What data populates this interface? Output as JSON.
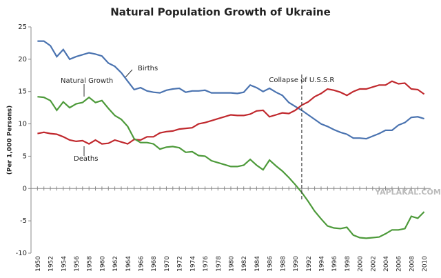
{
  "chart_data": {
    "type": "line",
    "title": "Natural Population Growth of Ukraine",
    "y_label": "(Per 1,000 Persons)",
    "x": [
      1950,
      1951,
      1952,
      1953,
      1954,
      1955,
      1956,
      1957,
      1958,
      1959,
      1960,
      1961,
      1962,
      1963,
      1964,
      1965,
      1966,
      1967,
      1968,
      1969,
      1970,
      1971,
      1972,
      1973,
      1974,
      1975,
      1976,
      1977,
      1978,
      1979,
      1980,
      1981,
      1982,
      1983,
      1984,
      1985,
      1986,
      1987,
      1988,
      1989,
      1990,
      1991,
      1992,
      1993,
      1994,
      1995,
      1996,
      1997,
      1998,
      1999,
      2000,
      2001,
      2002,
      2003,
      2004,
      2005,
      2006,
      2007,
      2008,
      2009,
      2010
    ],
    "series": [
      {
        "name": "Births",
        "color": "#4a73b0",
        "values": [
          22.8,
          22.8,
          22.1,
          20.4,
          21.5,
          20.0,
          20.4,
          20.7,
          21.0,
          20.8,
          20.5,
          19.4,
          18.9,
          17.9,
          16.6,
          15.3,
          15.6,
          15.1,
          14.9,
          14.8,
          15.2,
          15.4,
          15.5,
          14.9,
          15.1,
          15.1,
          15.2,
          14.8,
          14.8,
          14.8,
          14.8,
          14.7,
          14.9,
          16.0,
          15.6,
          15.0,
          15.5,
          14.9,
          14.4,
          13.3,
          12.7,
          12.1,
          11.4,
          10.7,
          10.0,
          9.6,
          9.1,
          8.7,
          8.4,
          7.8,
          7.8,
          7.7,
          8.1,
          8.5,
          9.0,
          9.0,
          9.8,
          10.2,
          11.0,
          11.1,
          10.8
        ]
      },
      {
        "name": "Deaths",
        "color": "#c0282d",
        "values": [
          8.5,
          8.7,
          8.5,
          8.4,
          8.0,
          7.5,
          7.3,
          7.4,
          6.9,
          7.5,
          6.9,
          7.0,
          7.5,
          7.2,
          6.9,
          7.6,
          7.5,
          8.0,
          8.0,
          8.6,
          8.8,
          8.9,
          9.2,
          9.3,
          9.4,
          10.0,
          10.2,
          10.5,
          10.8,
          11.1,
          11.4,
          11.3,
          11.3,
          11.5,
          12.0,
          12.1,
          11.1,
          11.4,
          11.7,
          11.6,
          12.1,
          12.9,
          13.4,
          14.2,
          14.7,
          15.4,
          15.2,
          14.9,
          14.4,
          15.0,
          15.4,
          15.4,
          15.7,
          16.0,
          16.0,
          16.6,
          16.2,
          16.3,
          15.4,
          15.3,
          14.6
        ]
      },
      {
        "name": "Natural Growth",
        "color": "#4d9a3a",
        "values": [
          14.2,
          14.1,
          13.6,
          12.1,
          13.4,
          12.5,
          13.1,
          13.3,
          14.1,
          13.3,
          13.6,
          12.4,
          11.3,
          10.7,
          9.6,
          7.7,
          7.1,
          7.1,
          6.9,
          6.1,
          6.4,
          6.5,
          6.3,
          5.6,
          5.7,
          5.1,
          5.0,
          4.3,
          4.0,
          3.7,
          3.4,
          3.4,
          3.6,
          4.5,
          3.6,
          2.9,
          4.4,
          3.5,
          2.7,
          1.7,
          0.6,
          -0.6,
          -2.0,
          -3.5,
          -4.7,
          -5.8,
          -6.1,
          -6.2,
          -6.0,
          -7.2,
          -7.6,
          -7.7,
          -7.6,
          -7.5,
          -7.0,
          -6.4,
          -6.4,
          -6.2,
          -4.3,
          -4.6,
          -3.6
        ]
      }
    ],
    "vline": {
      "x": 1991,
      "label": "Collapse of U.S.S.R"
    },
    "watermark": "YAPLAKAL.COM",
    "xlim": [
      1949,
      2011
    ],
    "xticks": [
      1950,
      1952,
      1954,
      1956,
      1958,
      1960,
      1962,
      1964,
      1966,
      1968,
      1970,
      1972,
      1974,
      1976,
      1978,
      1980,
      1982,
      1984,
      1986,
      1988,
      1990,
      1992,
      1994,
      1996,
      1998,
      2000,
      2002,
      2004,
      2006,
      2008,
      2010
    ],
    "ylim": [
      -10,
      25
    ],
    "yticks": [
      -10,
      -5,
      0,
      5,
      10,
      15,
      20,
      25
    ],
    "grid": false
  }
}
